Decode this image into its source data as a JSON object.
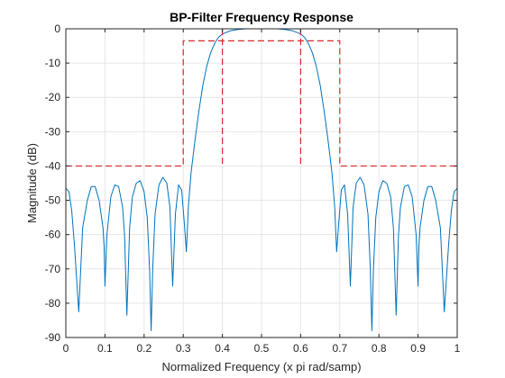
{
  "chart_data": {
    "type": "line",
    "title": "BP-Filter Frequency Response",
    "xlabel": "Normalized Frequency (x pi rad/samp)",
    "ylabel": "Magnitude (dB)",
    "xlim": [
      0,
      1
    ],
    "ylim": [
      -90,
      0
    ],
    "xticks": [
      0,
      0.1,
      0.2,
      0.3,
      0.4,
      0.5,
      0.6,
      0.7,
      0.8,
      0.9,
      1
    ],
    "xtick_labels": [
      "0",
      "0.1",
      "0.2",
      "0.3",
      "0.4",
      "0.5",
      "0.6",
      "0.7",
      "0.8",
      "0.9",
      "1"
    ],
    "yticks": [
      0,
      -10,
      -20,
      -30,
      -40,
      -50,
      -60,
      -70,
      -80,
      -90
    ],
    "ytick_labels": [
      "0",
      "-10",
      "-20",
      "-30",
      "-40",
      "-50",
      "-60",
      "-70",
      "-80",
      "-90"
    ],
    "grid": true,
    "series": [
      {
        "style": "solid",
        "color": "#0072BD",
        "points": [
          [
            0.0,
            -46.5
          ],
          [
            0.008,
            -47.5
          ],
          [
            0.015,
            -53.0
          ],
          [
            0.022,
            -63.0
          ],
          [
            0.033,
            -82.5
          ],
          [
            0.043,
            -58.0
          ],
          [
            0.055,
            -50.0
          ],
          [
            0.065,
            -46.0
          ],
          [
            0.075,
            -46.0
          ],
          [
            0.085,
            -50.0
          ],
          [
            0.095,
            -58.0
          ],
          [
            0.098,
            -64.0
          ],
          [
            0.1,
            -75.0
          ],
          [
            0.105,
            -60.0
          ],
          [
            0.115,
            -49.0
          ],
          [
            0.125,
            -45.5
          ],
          [
            0.135,
            -46.0
          ],
          [
            0.145,
            -52.0
          ],
          [
            0.15,
            -60.0
          ],
          [
            0.156,
            -83.5
          ],
          [
            0.163,
            -58.0
          ],
          [
            0.17,
            -49.0
          ],
          [
            0.18,
            -45.0
          ],
          [
            0.19,
            -44.3
          ],
          [
            0.2,
            -47.5
          ],
          [
            0.208,
            -55.0
          ],
          [
            0.214,
            -70.0
          ],
          [
            0.218,
            -88.0
          ],
          [
            0.222,
            -70.0
          ],
          [
            0.228,
            -54.0
          ],
          [
            0.238,
            -45.5
          ],
          [
            0.248,
            -43.3
          ],
          [
            0.258,
            -45.0
          ],
          [
            0.266,
            -52.0
          ],
          [
            0.273,
            -75.0
          ],
          [
            0.28,
            -54.0
          ],
          [
            0.288,
            -45.5
          ],
          [
            0.296,
            -47.0
          ],
          [
            0.303,
            -57.0
          ],
          [
            0.308,
            -65.0
          ],
          [
            0.313,
            -52.0
          ],
          [
            0.32,
            -42.0
          ],
          [
            0.33,
            -32.5
          ],
          [
            0.34,
            -24.0
          ],
          [
            0.35,
            -16.5
          ],
          [
            0.36,
            -11.0
          ],
          [
            0.37,
            -7.0
          ],
          [
            0.38,
            -4.3
          ],
          [
            0.39,
            -2.5
          ],
          [
            0.4,
            -1.5
          ],
          [
            0.42,
            -0.6
          ],
          [
            0.44,
            -0.2
          ],
          [
            0.46,
            0.0
          ],
          [
            0.5,
            0.0
          ],
          [
            0.54,
            0.0
          ],
          [
            0.56,
            -0.2
          ],
          [
            0.58,
            -0.6
          ],
          [
            0.6,
            -1.5
          ],
          [
            0.61,
            -2.5
          ],
          [
            0.62,
            -4.3
          ],
          [
            0.63,
            -7.0
          ],
          [
            0.64,
            -11.0
          ],
          [
            0.65,
            -16.5
          ],
          [
            0.66,
            -24.0
          ],
          [
            0.67,
            -32.5
          ],
          [
            0.68,
            -42.0
          ],
          [
            0.687,
            -52.0
          ],
          [
            0.692,
            -65.0
          ],
          [
            0.697,
            -57.0
          ],
          [
            0.704,
            -47.0
          ],
          [
            0.712,
            -45.5
          ],
          [
            0.72,
            -54.0
          ],
          [
            0.727,
            -75.0
          ],
          [
            0.734,
            -52.0
          ],
          [
            0.742,
            -45.0
          ],
          [
            0.752,
            -43.3
          ],
          [
            0.762,
            -45.5
          ],
          [
            0.772,
            -54.0
          ],
          [
            0.778,
            -70.0
          ],
          [
            0.782,
            -88.0
          ],
          [
            0.786,
            -70.0
          ],
          [
            0.792,
            -55.0
          ],
          [
            0.8,
            -47.5
          ],
          [
            0.81,
            -44.3
          ],
          [
            0.82,
            -45.0
          ],
          [
            0.83,
            -49.0
          ],
          [
            0.837,
            -58.0
          ],
          [
            0.844,
            -83.5
          ],
          [
            0.85,
            -60.0
          ],
          [
            0.855,
            -52.0
          ],
          [
            0.865,
            -46.0
          ],
          [
            0.875,
            -45.5
          ],
          [
            0.885,
            -49.0
          ],
          [
            0.895,
            -60.0
          ],
          [
            0.9,
            -75.0
          ],
          [
            0.902,
            -64.0
          ],
          [
            0.905,
            -58.0
          ],
          [
            0.915,
            -50.0
          ],
          [
            0.925,
            -46.0
          ],
          [
            0.935,
            -46.0
          ],
          [
            0.945,
            -50.0
          ],
          [
            0.957,
            -58.0
          ],
          [
            0.967,
            -82.5
          ],
          [
            0.978,
            -63.0
          ],
          [
            0.985,
            -53.0
          ],
          [
            0.992,
            -47.5
          ],
          [
            1.0,
            -46.5
          ]
        ]
      },
      {
        "style": "dashed",
        "color": "#D62728",
        "points": [
          [
            0.0,
            -40
          ],
          [
            0.3,
            -40
          ],
          [
            0.3,
            -3.5
          ],
          [
            0.7,
            -3.5
          ],
          [
            0.7,
            -40
          ],
          [
            1.0,
            -40
          ]
        ]
      },
      {
        "style": "dashed",
        "color": "#D62728",
        "points": [
          [
            0.4,
            0
          ],
          [
            0.4,
            -40
          ]
        ]
      },
      {
        "style": "dashed",
        "color": "#D62728",
        "points": [
          [
            0.6,
            0
          ],
          [
            0.6,
            -40
          ]
        ]
      }
    ]
  }
}
